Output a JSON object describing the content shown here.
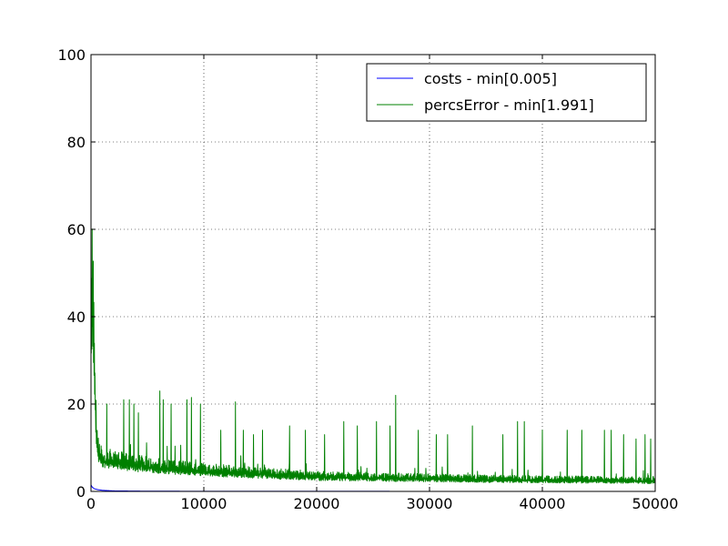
{
  "chart_data": {
    "type": "line",
    "title": "",
    "xlabel": "",
    "ylabel": "",
    "xlim": [
      0,
      50000
    ],
    "ylim": [
      0,
      100
    ],
    "x_ticks": [
      0,
      10000,
      20000,
      30000,
      40000,
      50000
    ],
    "y_ticks": [
      0,
      20,
      40,
      60,
      80,
      100
    ],
    "x_tick_labels": [
      "0",
      "10000",
      "20000",
      "30000",
      "40000",
      "50000"
    ],
    "y_tick_labels": [
      "0",
      "20",
      "40",
      "60",
      "80",
      "100"
    ],
    "grid": true,
    "legend_placement": "top-right",
    "series": [
      {
        "name": "costs - min[0.005]",
        "color": "#0000ff",
        "points": [
          [
            0,
            1.5
          ],
          [
            100,
            1.0
          ],
          [
            300,
            0.6
          ],
          [
            600,
            0.4
          ],
          [
            1000,
            0.25
          ],
          [
            2000,
            0.12
          ],
          [
            5000,
            0.05
          ],
          [
            10000,
            0.03
          ],
          [
            20000,
            0.02
          ],
          [
            30000,
            0.01
          ],
          [
            40000,
            0.008
          ],
          [
            50000,
            0.005
          ]
        ],
        "spikes": []
      },
      {
        "name": "percsError - min[1.991]",
        "color": "#008000",
        "points": [
          [
            0,
            30
          ],
          [
            100,
            46
          ],
          [
            200,
            40
          ],
          [
            300,
            25
          ],
          [
            400,
            18
          ],
          [
            500,
            12
          ],
          [
            600,
            9
          ],
          [
            800,
            7.5
          ],
          [
            1000,
            7
          ],
          [
            2000,
            6.5
          ],
          [
            5000,
            5.5
          ],
          [
            10000,
            4.5
          ],
          [
            15000,
            3.8
          ],
          [
            20000,
            3.2
          ],
          [
            25000,
            3.0
          ],
          [
            30000,
            2.8
          ],
          [
            35000,
            2.6
          ],
          [
            40000,
            2.5
          ],
          [
            45000,
            2.4
          ],
          [
            50000,
            2.3
          ]
        ],
        "spikes": [
          [
            1400,
            20
          ],
          [
            2900,
            21
          ],
          [
            3400,
            21
          ],
          [
            3800,
            20
          ],
          [
            4200,
            18
          ],
          [
            6100,
            23
          ],
          [
            6400,
            21
          ],
          [
            7100,
            20
          ],
          [
            8500,
            21
          ],
          [
            8900,
            21.5
          ],
          [
            9700,
            20
          ],
          [
            11500,
            14
          ],
          [
            12800,
            20.5
          ],
          [
            13500,
            14
          ],
          [
            14400,
            13
          ],
          [
            15200,
            14
          ],
          [
            17600,
            15
          ],
          [
            19000,
            14
          ],
          [
            20700,
            13
          ],
          [
            22400,
            16
          ],
          [
            23600,
            15
          ],
          [
            25300,
            16
          ],
          [
            26500,
            15
          ],
          [
            27000,
            22
          ],
          [
            29000,
            14
          ],
          [
            30600,
            13
          ],
          [
            31600,
            13
          ],
          [
            33800,
            15
          ],
          [
            36500,
            13
          ],
          [
            37800,
            16
          ],
          [
            38400,
            16
          ],
          [
            40000,
            14
          ],
          [
            42200,
            14
          ],
          [
            43500,
            14
          ],
          [
            45500,
            14
          ],
          [
            46100,
            14
          ],
          [
            47200,
            13
          ],
          [
            48300,
            12
          ],
          [
            49100,
            13
          ],
          [
            49600,
            12
          ]
        ]
      }
    ]
  }
}
